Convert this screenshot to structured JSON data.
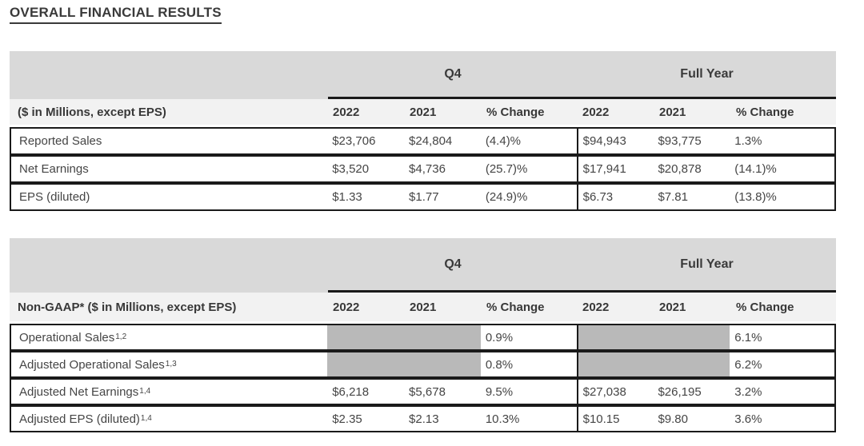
{
  "title": "OVERALL FINANCIAL RESULTS",
  "colors": {
    "band_gray": "#d9d9d9",
    "header_row_gray": "#f2f2f2",
    "shaded_cell_gray": "#b9b9b9",
    "border_black": "#1a1a1a",
    "text": "#3f3f3f"
  },
  "tables": {
    "gaap": {
      "q4_header": "Q4",
      "full_year_header": "Full Year",
      "label_header": "($ in Millions, except EPS)",
      "col_headers": [
        "2022",
        "2021",
        "% Change",
        "2022",
        "2021",
        "% Change"
      ],
      "rows": [
        {
          "label": "Reported Sales",
          "sup": "",
          "q4_2022": "$23,706",
          "q4_2021": "$24,804",
          "q4_change": "(4.4)%",
          "fy_2022": "$94,943",
          "fy_2021": "$93,775",
          "fy_change": "1.3%"
        },
        {
          "label": "Net Earnings",
          "sup": "",
          "q4_2022": "$3,520",
          "q4_2021": "$4,736",
          "q4_change": "(25.7)%",
          "fy_2022": "$17,941",
          "fy_2021": "$20,878",
          "fy_change": "(14.1)%"
        },
        {
          "label": "EPS (diluted)",
          "sup": "",
          "q4_2022": "$1.33",
          "q4_2021": "$1.77",
          "q4_change": "(24.9)%",
          "fy_2022": "$6.73",
          "fy_2021": "$7.81",
          "fy_change": "(13.8)%"
        }
      ]
    },
    "non_gaap": {
      "q4_header": "Q4",
      "full_year_header": "Full Year",
      "label_header": "Non-GAAP* ($ in Millions, except EPS)",
      "col_headers": [
        "2022",
        "2021",
        "% Change",
        "2022",
        "2021",
        "% Change"
      ],
      "rows": [
        {
          "label": "Operational Sales",
          "sup": "1,2",
          "q4_2022": "",
          "q4_2021": "",
          "q4_change": "0.9%",
          "fy_2022": "",
          "fy_2021": "",
          "fy_change": "6.1%"
        },
        {
          "label": "Adjusted Operational Sales",
          "sup": "1,3",
          "q4_2022": "",
          "q4_2021": "",
          "q4_change": "0.8%",
          "fy_2022": "",
          "fy_2021": "",
          "fy_change": "6.2%"
        },
        {
          "label": "Adjusted Net Earnings",
          "sup": "1,4",
          "q4_2022": "$6,218",
          "q4_2021": "$5,678",
          "q4_change": "9.5%",
          "fy_2022": "$27,038",
          "fy_2021": "$26,195",
          "fy_change": "3.2%"
        },
        {
          "label": "Adjusted EPS (diluted)",
          "sup": "1,4",
          "q4_2022": "$2.35",
          "q4_2021": "$2.13",
          "q4_change": "10.3%",
          "fy_2022": "$10.15",
          "fy_2021": "$9.80",
          "fy_change": "3.6%"
        }
      ]
    }
  }
}
